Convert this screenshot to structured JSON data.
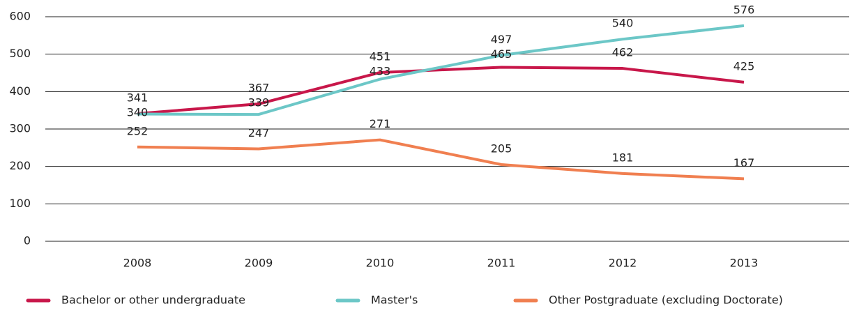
{
  "chart_data": {
    "type": "line",
    "categories": [
      "2008",
      "2009",
      "2010",
      "2011",
      "2012",
      "2013"
    ],
    "series": [
      {
        "name": "Bachelor or other undergraduate",
        "color": "#c8174a",
        "values": [
          341,
          367,
          451,
          465,
          462,
          425
        ]
      },
      {
        "name": "Master's",
        "color": "#6cc7c7",
        "values": [
          340,
          339,
          433,
          497,
          540,
          576
        ]
      },
      {
        "name": "Other Postgraduate (excluding Doctorate)",
        "color": "#f07f50",
        "values": [
          252,
          247,
          271,
          205,
          181,
          167
        ]
      }
    ],
    "ylim": [
      0,
      600
    ],
    "yticks": [
      0,
      100,
      200,
      300,
      400,
      500,
      600
    ],
    "grid": true,
    "legend": "bottom"
  }
}
